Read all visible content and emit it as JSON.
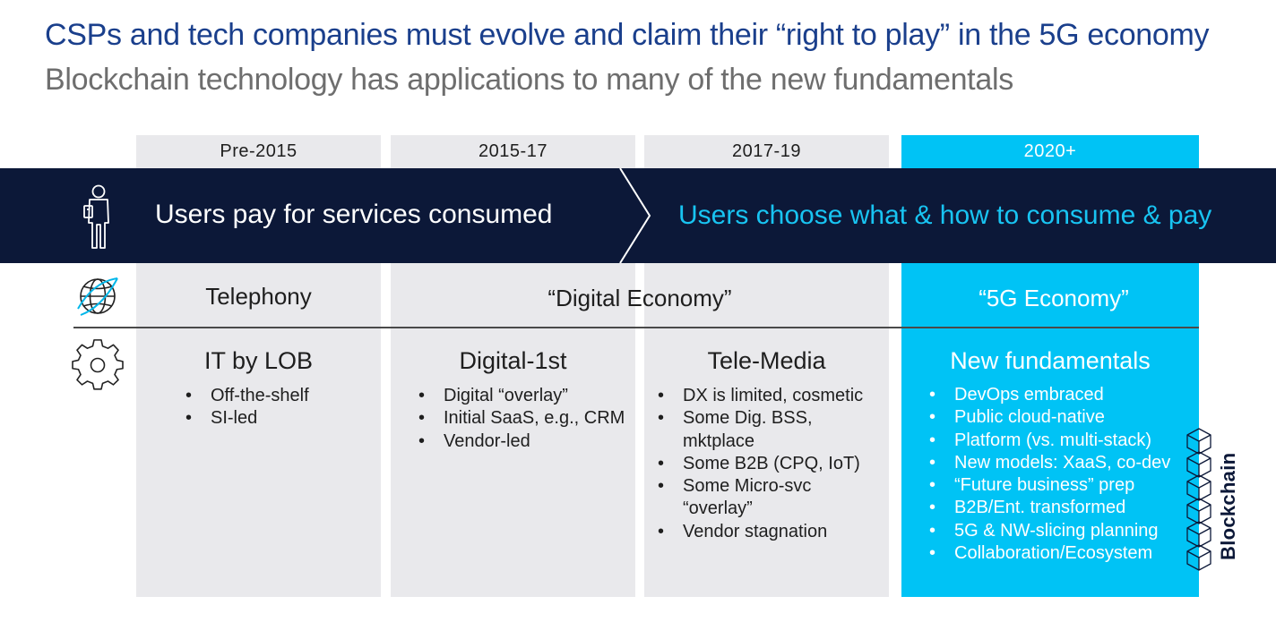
{
  "title": "CSPs and tech companies must evolve and claim their “right to play” in the 5G economy",
  "subtitle": "Blockchain technology has applications to many of the new fundamentals",
  "eras": [
    "Pre-2015",
    "2015-17",
    "2017-19",
    "2020+"
  ],
  "band": {
    "left_text": "Users pay for services consumed",
    "right_text": "Users choose what & how to consume & pay"
  },
  "economies": {
    "telephony": "Telephony",
    "digital": "“Digital Economy”",
    "fiveg": "“5G Economy”"
  },
  "columns": [
    {
      "heading": "IT by LOB",
      "bullets": [
        "Off-the-shelf",
        "SI-led"
      ]
    },
    {
      "heading": "Digital-1st",
      "bullets": [
        "Digital “overlay”",
        "Initial SaaS, e.g., CRM",
        "Vendor-led"
      ]
    },
    {
      "heading": "Tele-Media",
      "bullets": [
        "DX is limited, cosmetic",
        "Some Dig. BSS, mktplace",
        "Some B2B (CPQ, IoT)",
        "Some Micro-svc “overlay”",
        "Vendor stagnation"
      ]
    },
    {
      "heading": "New fundamentals",
      "bullets": [
        "DevOps embraced",
        "Public cloud-native",
        "Platform (vs. multi-stack)",
        "New models: XaaS, co-dev",
        "“Future business” prep",
        "B2B/Ent. transformed",
        "5G & NW-slicing planning",
        "Collaboration/Ecosystem"
      ]
    }
  ],
  "blockchain_label": "Blockchain",
  "icons": [
    "person-icon",
    "globe-icon",
    "gear-icon",
    "blockchain-cubes-icon"
  ],
  "colors": {
    "navy": "#0c1838",
    "cyan": "#00c3f5",
    "title_blue": "#1a3f8c",
    "grey": "#e9e9ec"
  }
}
